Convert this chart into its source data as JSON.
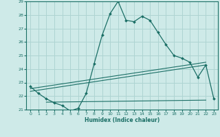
{
  "xlabel": "Humidex (Indice chaleur)",
  "ylabel": "",
  "xlim": [
    -0.5,
    23.5
  ],
  "ylim": [
    21,
    29
  ],
  "xticks": [
    0,
    1,
    2,
    3,
    4,
    5,
    6,
    7,
    8,
    9,
    10,
    11,
    12,
    13,
    14,
    15,
    16,
    17,
    18,
    19,
    20,
    21,
    22,
    23
  ],
  "yticks": [
    21,
    22,
    23,
    24,
    25,
    26,
    27,
    28,
    29
  ],
  "bg_color": "#ceeae8",
  "grid_color": "#aed4d2",
  "line_color": "#1a6e65",
  "main_line_x": [
    0,
    1,
    2,
    3,
    4,
    5,
    6,
    7,
    8,
    9,
    10,
    11,
    12,
    13,
    14,
    15,
    16,
    17,
    18,
    19,
    20,
    21,
    22,
    23
  ],
  "main_line_y": [
    22.7,
    22.2,
    21.8,
    21.5,
    21.3,
    20.9,
    21.1,
    22.2,
    24.4,
    26.5,
    28.1,
    29.0,
    27.6,
    27.5,
    27.9,
    27.6,
    26.7,
    25.8,
    25.0,
    24.8,
    24.5,
    23.4,
    24.3,
    21.8
  ],
  "trend1_x": [
    0,
    22
  ],
  "trend1_y": [
    22.35,
    24.3
  ],
  "trend2_x": [
    0,
    22
  ],
  "trend2_y": [
    22.55,
    24.5
  ],
  "trend3_x": [
    2,
    22
  ],
  "trend3_y": [
    21.55,
    21.7
  ]
}
